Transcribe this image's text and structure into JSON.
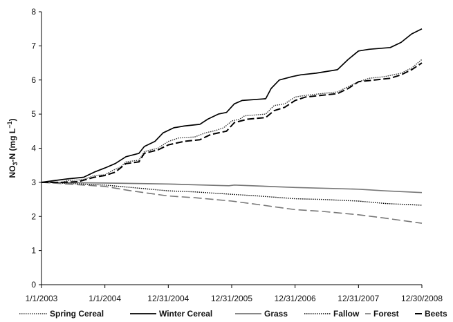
{
  "chart_data": {
    "type": "line",
    "title": "",
    "xlabel": "",
    "ylabel": {
      "main": "NO",
      "sub1": "3",
      "mid": "-N (mg L",
      "sup": "−1",
      "end": ")"
    },
    "ylim": [
      0,
      8
    ],
    "yticks": [
      "0",
      "1",
      "2",
      "3",
      "4",
      "5",
      "6",
      "7",
      "8"
    ],
    "xlim": [
      "2003-01-01",
      "2008-12-30"
    ],
    "xticks": [
      {
        "date": "2003-01-01",
        "label": "1/1/2003"
      },
      {
        "date": "2004-01-01",
        "label": "1/1/2004"
      },
      {
        "date": "2004-12-31",
        "label": "12/31/2004"
      },
      {
        "date": "2005-12-31",
        "label": "12/31/2005"
      },
      {
        "date": "2006-12-31",
        "label": "12/31/2006"
      },
      {
        "date": "2007-12-31",
        "label": "12/31/2007"
      },
      {
        "date": "2008-12-30",
        "label": "12/30/2008"
      }
    ],
    "grid": false,
    "legend_position": "bottom",
    "series": [
      {
        "name": "Spring Cereal",
        "color": "#333333",
        "dash": "dotted",
        "points": [
          [
            "2003-01-01",
            3.0
          ],
          [
            "2003-05-01",
            3.0
          ],
          [
            "2003-06-01",
            3.05
          ],
          [
            "2003-09-01",
            3.08
          ],
          [
            "2003-11-01",
            3.2
          ],
          [
            "2004-01-01",
            3.22
          ],
          [
            "2004-02-15",
            3.35
          ],
          [
            "2004-04-01",
            3.45
          ],
          [
            "2004-05-01",
            3.6
          ],
          [
            "2004-07-15",
            3.65
          ],
          [
            "2004-08-15",
            3.9
          ],
          [
            "2004-11-01",
            4.0
          ],
          [
            "2005-01-01",
            4.2
          ],
          [
            "2005-03-01",
            4.3
          ],
          [
            "2005-06-01",
            4.33
          ],
          [
            "2005-08-01",
            4.45
          ],
          [
            "2005-10-01",
            4.52
          ],
          [
            "2005-11-15",
            4.6
          ],
          [
            "2006-01-01",
            4.8
          ],
          [
            "2006-02-15",
            4.85
          ],
          [
            "2006-03-15",
            4.95
          ],
          [
            "2006-07-15",
            5.0
          ],
          [
            "2006-09-01",
            5.25
          ],
          [
            "2006-11-01",
            5.3
          ],
          [
            "2007-01-01",
            5.5
          ],
          [
            "2007-03-01",
            5.55
          ],
          [
            "2007-06-01",
            5.6
          ],
          [
            "2007-09-01",
            5.65
          ],
          [
            "2007-11-01",
            5.8
          ],
          [
            "2008-01-01",
            5.95
          ],
          [
            "2008-03-01",
            6.05
          ],
          [
            "2008-06-01",
            6.1
          ],
          [
            "2008-09-01",
            6.2
          ],
          [
            "2008-11-01",
            6.35
          ],
          [
            "2008-12-30",
            6.6
          ]
        ]
      },
      {
        "name": "Winter Cereal",
        "color": "#000000",
        "dash": "solid",
        "points": [
          [
            "2003-01-01",
            3.0
          ],
          [
            "2003-03-15",
            3.05
          ],
          [
            "2003-06-01",
            3.1
          ],
          [
            "2003-09-01",
            3.15
          ],
          [
            "2003-11-01",
            3.3
          ],
          [
            "2004-01-01",
            3.42
          ],
          [
            "2004-03-01",
            3.55
          ],
          [
            "2004-05-01",
            3.75
          ],
          [
            "2004-07-15",
            3.85
          ],
          [
            "2004-08-15",
            4.05
          ],
          [
            "2004-10-15",
            4.2
          ],
          [
            "2004-12-01",
            4.45
          ],
          [
            "2005-02-01",
            4.6
          ],
          [
            "2005-04-01",
            4.65
          ],
          [
            "2005-07-01",
            4.7
          ],
          [
            "2005-08-15",
            4.85
          ],
          [
            "2005-10-15",
            5.0
          ],
          [
            "2005-12-01",
            5.05
          ],
          [
            "2006-01-15",
            5.3
          ],
          [
            "2006-03-01",
            5.4
          ],
          [
            "2006-07-15",
            5.45
          ],
          [
            "2006-08-15",
            5.75
          ],
          [
            "2006-10-01",
            6.0
          ],
          [
            "2006-12-15",
            6.1
          ],
          [
            "2007-02-01",
            6.15
          ],
          [
            "2007-05-01",
            6.2
          ],
          [
            "2007-09-01",
            6.3
          ],
          [
            "2007-11-01",
            6.6
          ],
          [
            "2007-12-31",
            6.85
          ],
          [
            "2008-03-01",
            6.9
          ],
          [
            "2008-07-01",
            6.95
          ],
          [
            "2008-09-01",
            7.1
          ],
          [
            "2008-11-01",
            7.35
          ],
          [
            "2008-12-30",
            7.5
          ]
        ]
      },
      {
        "name": "Grass",
        "color": "#777777",
        "dash": "solid",
        "points": [
          [
            "2003-01-01",
            3.0
          ],
          [
            "2004-01-01",
            2.98
          ],
          [
            "2005-01-01",
            2.95
          ],
          [
            "2005-12-15",
            2.9
          ],
          [
            "2006-01-15",
            2.92
          ],
          [
            "2006-12-31",
            2.85
          ],
          [
            "2007-12-31",
            2.8
          ],
          [
            "2008-06-01",
            2.75
          ],
          [
            "2008-12-30",
            2.7
          ]
        ]
      },
      {
        "name": "Fallow",
        "color": "#000000",
        "dash": "dotted",
        "points": [
          [
            "2003-01-01",
            3.0
          ],
          [
            "2003-06-01",
            2.97
          ],
          [
            "2004-01-01",
            2.92
          ],
          [
            "2004-06-01",
            2.85
          ],
          [
            "2004-12-31",
            2.75
          ],
          [
            "2005-06-01",
            2.72
          ],
          [
            "2005-12-31",
            2.65
          ],
          [
            "2006-06-01",
            2.6
          ],
          [
            "2006-12-31",
            2.52
          ],
          [
            "2007-06-01",
            2.5
          ],
          [
            "2007-12-31",
            2.45
          ],
          [
            "2008-06-01",
            2.38
          ],
          [
            "2008-12-30",
            2.33
          ]
        ]
      },
      {
        "name": "Forest",
        "color": "#777777",
        "dash": "dashed",
        "points": [
          [
            "2003-01-01",
            3.0
          ],
          [
            "2003-06-01",
            2.95
          ],
          [
            "2004-01-01",
            2.88
          ],
          [
            "2004-06-01",
            2.75
          ],
          [
            "2004-12-31",
            2.6
          ],
          [
            "2005-06-01",
            2.55
          ],
          [
            "2005-12-31",
            2.45
          ],
          [
            "2006-06-01",
            2.35
          ],
          [
            "2006-12-31",
            2.2
          ],
          [
            "2007-06-01",
            2.15
          ],
          [
            "2007-12-31",
            2.05
          ],
          [
            "2008-06-01",
            1.95
          ],
          [
            "2008-12-30",
            1.8
          ]
        ]
      },
      {
        "name": "Beets",
        "color": "#000000",
        "dash": "longdash",
        "points": [
          [
            "2003-01-01",
            3.0
          ],
          [
            "2003-05-01",
            3.0
          ],
          [
            "2003-08-01",
            3.02
          ],
          [
            "2003-11-01",
            3.15
          ],
          [
            "2004-01-01",
            3.2
          ],
          [
            "2004-03-01",
            3.3
          ],
          [
            "2004-05-01",
            3.55
          ],
          [
            "2004-07-15",
            3.6
          ],
          [
            "2004-08-15",
            3.85
          ],
          [
            "2004-11-01",
            3.95
          ],
          [
            "2005-01-01",
            4.1
          ],
          [
            "2005-04-01",
            4.2
          ],
          [
            "2005-07-01",
            4.25
          ],
          [
            "2005-09-01",
            4.4
          ],
          [
            "2005-12-01",
            4.5
          ],
          [
            "2006-01-15",
            4.75
          ],
          [
            "2006-04-01",
            4.85
          ],
          [
            "2006-07-15",
            4.9
          ],
          [
            "2006-09-01",
            5.1
          ],
          [
            "2006-11-01",
            5.2
          ],
          [
            "2006-12-31",
            5.4
          ],
          [
            "2007-03-01",
            5.5
          ],
          [
            "2007-06-01",
            5.55
          ],
          [
            "2007-09-01",
            5.6
          ],
          [
            "2007-11-01",
            5.75
          ],
          [
            "2008-01-01",
            5.95
          ],
          [
            "2008-04-01",
            6.0
          ],
          [
            "2008-07-01",
            6.05
          ],
          [
            "2008-09-01",
            6.15
          ],
          [
            "2008-11-01",
            6.3
          ],
          [
            "2008-12-30",
            6.5
          ]
        ]
      }
    ]
  }
}
